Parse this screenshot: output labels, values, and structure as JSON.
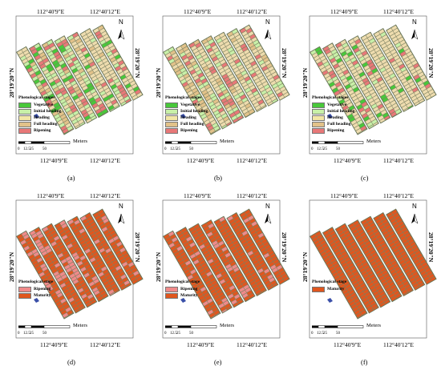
{
  "panels": [
    {
      "caption": "(a)",
      "lon_left": "112°40'9\"E",
      "lon_right": "112°40'12\"E",
      "lat": "28°19'20\"N",
      "north": "N",
      "legend_title": "Phenological stages",
      "legend": [
        {
          "label": "Vegetative",
          "color": "#48c83a"
        },
        {
          "label": "Initial heading",
          "color": "#c8f0a8"
        },
        {
          "label": "Heading",
          "color": "#f2e6a6"
        },
        {
          "label": "Full heading",
          "color": "#e2c28a"
        },
        {
          "label": "Ripening",
          "color": "#e87878"
        }
      ],
      "scale_ticks": [
        "0",
        "12.5",
        "25",
        "50"
      ],
      "scale_unit": "Meters",
      "base_color": "#eedcae",
      "patch_colors": [
        "#e87878",
        "#c8f0a8",
        "#48c83a",
        "#e2c28a"
      ],
      "patch_density": 0.55
    },
    {
      "caption": "(b)",
      "lon_left": "112°40'9\"E",
      "lon_right": "112°40'12\"E",
      "lat": "28°19'20\"N",
      "north": "N",
      "legend_title": "Phenological stages",
      "legend": [
        {
          "label": "Vegetative",
          "color": "#48c83a"
        },
        {
          "label": "Initial heading",
          "color": "#c8f0a8"
        },
        {
          "label": "Heading",
          "color": "#f2e6a6"
        },
        {
          "label": "Full heading",
          "color": "#e2c28a"
        },
        {
          "label": "Ripening",
          "color": "#e87878"
        }
      ],
      "scale_ticks": [
        "0",
        "12.5",
        "25",
        "50"
      ],
      "scale_unit": "Meters",
      "base_color": "#eedcae",
      "patch_colors": [
        "#e87878",
        "#e2c28a",
        "#c8f0a8"
      ],
      "patch_density": 0.45
    },
    {
      "caption": "(c)",
      "lon_left": "112°40'9\"E",
      "lon_right": "112°40'12\"E",
      "lat": "28°19'20\"N",
      "north": "N",
      "legend_title": "Phenological stages",
      "legend": [
        {
          "label": "Vegetative",
          "color": "#48c83a"
        },
        {
          "label": "Initial heading",
          "color": "#c8f0a8"
        },
        {
          "label": "Heading",
          "color": "#f2e6a6"
        },
        {
          "label": "Full heading",
          "color": "#e2c28a"
        },
        {
          "label": "Ripening",
          "color": "#e87878"
        }
      ],
      "scale_ticks": [
        "0",
        "12.5",
        "25",
        "50"
      ],
      "scale_unit": "Meters",
      "base_color": "#eedcae",
      "patch_colors": [
        "#e87878",
        "#48c83a",
        "#c8f0a8"
      ],
      "patch_density": 0.3
    },
    {
      "caption": "(d)",
      "lon_left": "112°40'9\"E",
      "lon_right": "112°40'12\"E",
      "lat": "28°19'20\"N",
      "north": "N",
      "legend_title": "Phenological stage",
      "legend": [
        {
          "label": "Ripening",
          "color": "#f08a8a"
        },
        {
          "label": "Maturity",
          "color": "#e0561e"
        }
      ],
      "scale_ticks": [
        "0",
        "12.5",
        "25",
        "50"
      ],
      "scale_unit": "Meters",
      "base_color": "#e0561e",
      "patch_colors": [
        "#f08a8a"
      ],
      "patch_density": 0.25
    },
    {
      "caption": "(e)",
      "lon_left": "112°40'9\"E",
      "lon_right": "112°40'12\"E",
      "lat": "28°19'20\"N",
      "north": "N",
      "legend_title": "Phenological stage",
      "legend": [
        {
          "label": "Ripening",
          "color": "#f08a8a"
        },
        {
          "label": "Maturity",
          "color": "#e0561e"
        }
      ],
      "scale_ticks": [
        "0",
        "12.5",
        "25",
        "50"
      ],
      "scale_unit": "Meters",
      "base_color": "#e0561e",
      "patch_colors": [
        "#f08a8a"
      ],
      "patch_density": 0.15
    },
    {
      "caption": "(f)",
      "lon_left": "112°40'9\"E",
      "lon_right": "112°40'12\"E",
      "lat": "28°19'20\"N",
      "north": "N",
      "legend_title": "Phenological stage",
      "legend": [
        {
          "label": "Maturity",
          "color": "#e0561e"
        }
      ],
      "scale_ticks": [
        "0",
        "12.5",
        "25",
        "50"
      ],
      "scale_unit": "Meters",
      "base_color": "#e0561e",
      "patch_colors": [],
      "patch_density": 0
    }
  ]
}
